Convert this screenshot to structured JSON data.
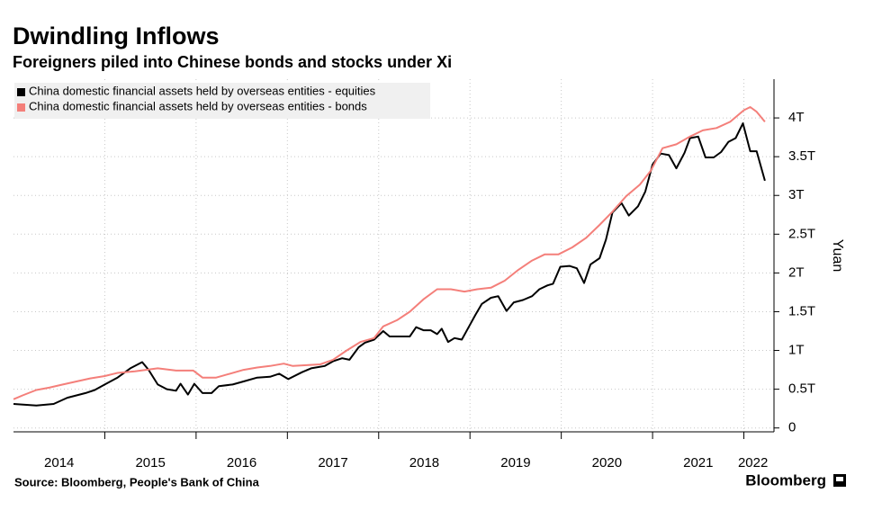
{
  "chart_data": {
    "type": "line",
    "title": "Dwindling Inflows",
    "subtitle": "Foreigners piled into Chinese bonds and stocks under Xi",
    "y_label": "Yuan",
    "source": "Source: Bloomberg, People's Bank of China",
    "brand": "Bloomberg",
    "xlim": [
      2014,
      2022.33
    ],
    "xticks": [
      {
        "value": 2014.5,
        "label": "2014"
      },
      {
        "value": 2015.5,
        "label": "2015"
      },
      {
        "value": 2016.5,
        "label": "2016"
      },
      {
        "value": 2017.5,
        "label": "2017"
      },
      {
        "value": 2018.5,
        "label": "2018"
      },
      {
        "value": 2019.5,
        "label": "2019"
      },
      {
        "value": 2020.5,
        "label": "2020"
      },
      {
        "value": 2021.5,
        "label": "2021"
      },
      {
        "value": 2022.1,
        "label": "2022"
      }
    ],
    "xgrid": [
      2015,
      2016,
      2017,
      2018,
      2019,
      2020,
      2021,
      2022
    ],
    "ylim": [
      -0.05,
      4.5
    ],
    "yticks": [
      0,
      {
        "value": 0.5,
        "label": "0.5T"
      },
      {
        "value": 1,
        "label": "1T"
      },
      {
        "value": 1.5,
        "label": "1.5T"
      },
      {
        "value": 2,
        "label": "2T"
      },
      {
        "value": 2.5,
        "label": "2.5T"
      },
      {
        "value": 3,
        "label": "3T"
      },
      {
        "value": 3.5,
        "label": "3.5T"
      },
      {
        "value": 4,
        "label": "4T"
      }
    ],
    "grid": true,
    "legend": "top-left",
    "series": [
      {
        "name": "China domestic financial assets held by overseas entities - equities",
        "color": "#000000",
        "x": [
          2014.0,
          2014.25,
          2014.44,
          2014.59,
          2014.79,
          2014.89,
          2015.0,
          2015.14,
          2015.28,
          2015.41,
          2015.48,
          2015.58,
          2015.68,
          2015.78,
          2015.83,
          2015.91,
          2015.98,
          2016.07,
          2016.17,
          2016.25,
          2016.4,
          2016.52,
          2016.67,
          2016.81,
          2016.91,
          2017.01,
          2017.16,
          2017.26,
          2017.41,
          2017.5,
          2017.6,
          2017.68,
          2017.78,
          2017.85,
          2017.95,
          2018.05,
          2018.12,
          2018.25,
          2018.34,
          2018.41,
          2018.49,
          2018.57,
          2018.64,
          2018.69,
          2018.76,
          2018.83,
          2018.91,
          2018.99,
          2019.06,
          2019.13,
          2019.23,
          2019.31,
          2019.4,
          2019.48,
          2019.58,
          2019.68,
          2019.76,
          2019.85,
          2019.91,
          2019.99,
          2020.09,
          2020.17,
          2020.25,
          2020.32,
          2020.42,
          2020.49,
          2020.56,
          2020.66,
          2020.74,
          2020.84,
          2020.92,
          2021.0,
          2021.09,
          2021.18,
          2021.26,
          2021.35,
          2021.41,
          2021.5,
          2021.58,
          2021.67,
          2021.75,
          2021.83,
          2021.91,
          2021.99,
          2022.07,
          2022.14,
          2022.23
        ],
        "values": [
          0.31,
          0.29,
          0.31,
          0.39,
          0.45,
          0.49,
          0.56,
          0.65,
          0.77,
          0.85,
          0.75,
          0.56,
          0.5,
          0.48,
          0.57,
          0.43,
          0.57,
          0.45,
          0.45,
          0.54,
          0.56,
          0.6,
          0.65,
          0.66,
          0.7,
          0.63,
          0.72,
          0.77,
          0.8,
          0.86,
          0.9,
          0.88,
          1.04,
          1.1,
          1.14,
          1.25,
          1.18,
          1.18,
          1.18,
          1.3,
          1.26,
          1.26,
          1.21,
          1.28,
          1.11,
          1.16,
          1.14,
          1.31,
          1.46,
          1.6,
          1.68,
          1.7,
          1.51,
          1.62,
          1.65,
          1.7,
          1.79,
          1.84,
          1.86,
          2.08,
          2.09,
          2.06,
          1.87,
          2.11,
          2.19,
          2.43,
          2.78,
          2.9,
          2.74,
          2.86,
          3.05,
          3.4,
          3.54,
          3.52,
          3.35,
          3.55,
          3.74,
          3.76,
          3.49,
          3.49,
          3.56,
          3.69,
          3.74,
          3.93,
          3.57,
          3.57,
          3.19
        ]
      },
      {
        "name": "China domestic financial assets held by overseas entities - bonds",
        "color": "#f47f7a",
        "x": [
          2014.0,
          2014.1,
          2014.25,
          2014.39,
          2014.54,
          2014.69,
          2014.84,
          2015.0,
          2015.14,
          2015.33,
          2015.58,
          2015.78,
          2015.97,
          2016.07,
          2016.22,
          2016.37,
          2016.52,
          2016.67,
          2016.81,
          2016.96,
          2017.06,
          2017.21,
          2017.36,
          2017.5,
          2017.65,
          2017.8,
          2017.95,
          2018.05,
          2018.2,
          2018.34,
          2018.49,
          2018.64,
          2018.79,
          2018.94,
          2019.08,
          2019.23,
          2019.38,
          2019.53,
          2019.68,
          2019.82,
          2019.97,
          2020.12,
          2020.27,
          2020.42,
          2020.56,
          2020.71,
          2020.86,
          2020.98,
          2021.11,
          2021.26,
          2021.41,
          2021.55,
          2021.7,
          2021.85,
          2022.0,
          2022.07,
          2022.14,
          2022.23
        ],
        "values": [
          0.37,
          0.42,
          0.49,
          0.52,
          0.56,
          0.6,
          0.64,
          0.67,
          0.71,
          0.73,
          0.77,
          0.74,
          0.74,
          0.65,
          0.65,
          0.7,
          0.75,
          0.78,
          0.8,
          0.83,
          0.8,
          0.81,
          0.82,
          0.88,
          1.0,
          1.11,
          1.16,
          1.31,
          1.39,
          1.5,
          1.66,
          1.79,
          1.79,
          1.76,
          1.79,
          1.81,
          1.9,
          2.04,
          2.16,
          2.24,
          2.24,
          2.33,
          2.45,
          2.62,
          2.79,
          2.99,
          3.14,
          3.32,
          3.61,
          3.66,
          3.76,
          3.84,
          3.87,
          3.95,
          4.1,
          4.14,
          4.08,
          3.95
        ]
      }
    ]
  }
}
